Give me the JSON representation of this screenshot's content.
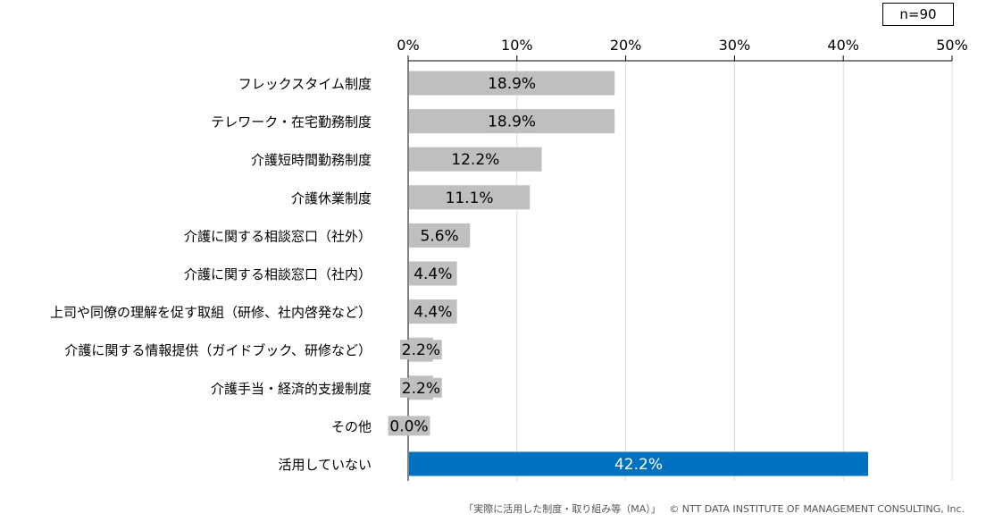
{
  "sample_label": "n=90",
  "footer": {
    "source": "「実際に活用した制度・取り組み等（MA）」",
    "copyright": "© NTT DATA INSTITUTE OF MANAGEMENT CONSULTING, Inc."
  },
  "colors": {
    "bar_default": "#bfbfbf",
    "bar_highlight": "#0070c0",
    "grid": "#d9d9d9",
    "axis": "#000000"
  },
  "chart_data": {
    "type": "bar",
    "orientation": "horizontal",
    "categories": [
      "フレックスタイム制度",
      "テレワーク・在宅勤務制度",
      "介護短時間勤務制度",
      "介護休業制度",
      "介護に関する相談窓口（社外）",
      "介護に関する相談窓口（社内）",
      "上司や同僚の理解を促す取組（研修、社内啓発など）",
      "介護に関する情報提供（ガイドブック、研修など）",
      "介護手当・経済的支援制度",
      "その他",
      "活用していない"
    ],
    "values": [
      18.9,
      18.9,
      12.2,
      11.1,
      5.6,
      4.4,
      4.4,
      2.2,
      2.2,
      0.0,
      42.2
    ],
    "value_labels": [
      "18.9%",
      "18.9%",
      "12.2%",
      "11.1%",
      "5.6%",
      "4.4%",
      "4.4%",
      "2.2%",
      "2.2%",
      "0.0%",
      "42.2%"
    ],
    "highlight_index": 10,
    "xlim": [
      0,
      50
    ],
    "xticks": [
      0,
      10,
      20,
      30,
      40,
      50
    ],
    "xtick_labels": [
      "0%",
      "10%",
      "20%",
      "30%",
      "40%",
      "50%"
    ],
    "axis_position": "top",
    "grid": true,
    "legend": "none"
  }
}
